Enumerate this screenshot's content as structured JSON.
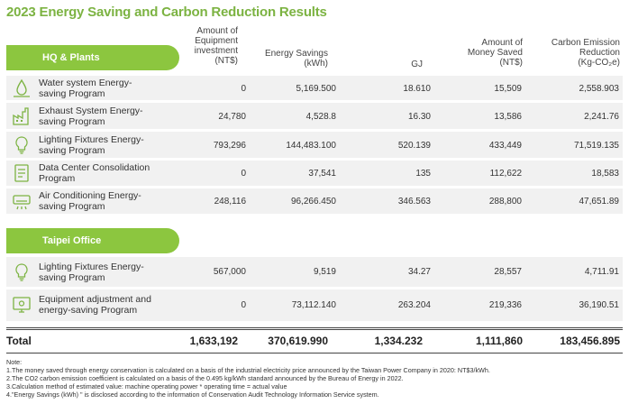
{
  "title": "2023 Energy Saving and Carbon Reduction Results",
  "columns": {
    "equipment": [
      "Amount of",
      "Equipment",
      "investment",
      "(NT$)"
    ],
    "energy": [
      "Energy Savings",
      "(kWh)"
    ],
    "gj": "GJ",
    "money": [
      "Amount of",
      "Money Saved",
      "(NT$)"
    ],
    "carbon": [
      "Carbon Emission",
      "Reduction",
      "(Kg-CO₂e)"
    ]
  },
  "sections": [
    {
      "label": "HQ & Plants",
      "rows": [
        {
          "icon": "water-drop-icon",
          "name": [
            "Water system Energy-",
            "saving Program"
          ],
          "equipment": "0",
          "energy": "5,169.500",
          "gj": "18.610",
          "money": "15,509",
          "carbon": "2,558.903"
        },
        {
          "icon": "factory-exhaust-icon",
          "name": [
            "Exhaust System Energy-",
            "saving Program"
          ],
          "equipment": "24,780",
          "energy": "4,528.8",
          "gj": "16.30",
          "money": "13,586",
          "carbon": "2,241.76"
        },
        {
          "icon": "light-bulb-icon",
          "name": [
            "Lighting Fixtures Energy-",
            "saving Program"
          ],
          "equipment": "793,296",
          "energy": "144,483.100",
          "gj": "520.139",
          "money": "433,449",
          "carbon": "71,519.135"
        },
        {
          "icon": "document-icon",
          "name": [
            "Data Center Consolidation",
            "Program"
          ],
          "equipment": "0",
          "energy": "37,541",
          "gj": "135",
          "money": "112,622",
          "carbon": "18,583"
        },
        {
          "icon": "air-conditioner-icon",
          "name": [
            "Air Conditioning Energy-",
            "saving Program"
          ],
          "equipment": "248,116",
          "energy": "96,266.450",
          "gj": "346.563",
          "money": "288,800",
          "carbon": "47,651.89"
        }
      ]
    },
    {
      "label": "Taipei Office",
      "rows": [
        {
          "icon": "light-bulb-icon",
          "name": [
            "Lighting Fixtures Energy-",
            "saving Program"
          ],
          "equipment": "567,000",
          "energy": "9,519",
          "gj": "34.27",
          "money": "28,557",
          "carbon": "4,711.91"
        },
        {
          "icon": "equipment-adjust-icon",
          "name": [
            "Equipment adjustment and",
            "energy-saving Program"
          ],
          "equipment": "0",
          "energy": "73,112.140",
          "gj": "263.204",
          "money": "219,336",
          "carbon": "36,190.51"
        }
      ]
    }
  ],
  "total": {
    "label": "Total",
    "equipment": "1,633,192",
    "energy": "370,619.990",
    "gj": "1,334.232",
    "money": "1,111,860",
    "carbon": "183,456.895"
  },
  "notes": [
    "Note:",
    "1.The money saved through energy conservation is calculated on a basis of the industrial electricity price announced by the Taiwan Power Company in 2020: NT$3/kWh.",
    "2.The CO2 carbon emission coefficient is calculated on a basis of the 0.495 kg/kWh standard announced by the Bureau of Energy in 2022.",
    "3.Calculation method of estimated value: machine operating power * operating time = actual value",
    "4.\"Energy Savings (kWh) \" is disclosed according to the information of Conservation Audit Technology Information Service system."
  ],
  "colors": {
    "accent": "#8cc63f",
    "title": "#7cb342",
    "row_bg": "#f1f1f1",
    "icon": "#7cb342"
  }
}
